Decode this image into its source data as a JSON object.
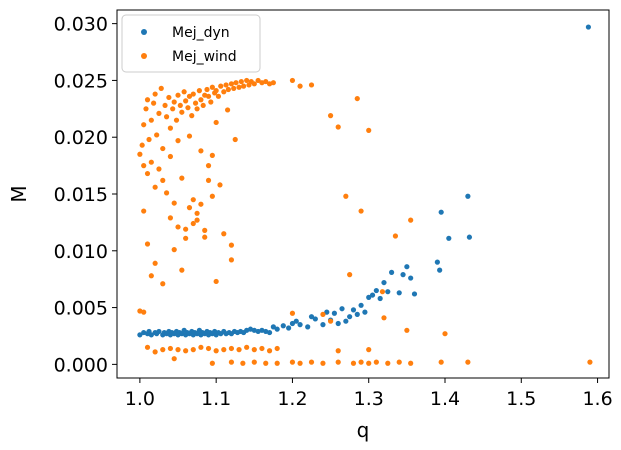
{
  "chart_data": {
    "type": "scatter",
    "xlabel": "q",
    "ylabel": "M",
    "xlim": [
      0.97,
      1.615
    ],
    "ylim": [
      -0.0012,
      0.0312
    ],
    "xticks": [
      "1.0",
      "1.1",
      "1.2",
      "1.3",
      "1.4",
      "1.5",
      "1.6"
    ],
    "xtick_values": [
      1.0,
      1.1,
      1.2,
      1.3,
      1.4,
      1.5,
      1.6
    ],
    "yticks": [
      "0.000",
      "0.005",
      "0.010",
      "0.015",
      "0.020",
      "0.025",
      "0.030"
    ],
    "ytick_values": [
      0.0,
      0.005,
      0.01,
      0.015,
      0.02,
      0.025,
      0.03
    ],
    "grid": false,
    "legend_position": "top-left",
    "series": [
      {
        "name": "Mej_dyn",
        "color": "#1f77b4",
        "points": [
          [
            1.0,
            0.0026
          ],
          [
            1.005,
            0.0028
          ],
          [
            1.01,
            0.0027
          ],
          [
            1.012,
            0.0029
          ],
          [
            1.015,
            0.0026
          ],
          [
            1.02,
            0.0028
          ],
          [
            1.022,
            0.0027
          ],
          [
            1.025,
            0.0029
          ],
          [
            1.03,
            0.0026
          ],
          [
            1.032,
            0.0028
          ],
          [
            1.035,
            0.0027
          ],
          [
            1.038,
            0.0029
          ],
          [
            1.04,
            0.0026
          ],
          [
            1.042,
            0.0028
          ],
          [
            1.045,
            0.0027
          ],
          [
            1.048,
            0.0029
          ],
          [
            1.05,
            0.0026
          ],
          [
            1.052,
            0.0028
          ],
          [
            1.055,
            0.0027
          ],
          [
            1.058,
            0.003
          ],
          [
            1.06,
            0.0026
          ],
          [
            1.062,
            0.0028
          ],
          [
            1.065,
            0.0027
          ],
          [
            1.068,
            0.0029
          ],
          [
            1.07,
            0.0026
          ],
          [
            1.072,
            0.0028
          ],
          [
            1.075,
            0.0027
          ],
          [
            1.078,
            0.003
          ],
          [
            1.08,
            0.0026
          ],
          [
            1.082,
            0.0028
          ],
          [
            1.085,
            0.0027
          ],
          [
            1.088,
            0.0029
          ],
          [
            1.09,
            0.0026
          ],
          [
            1.092,
            0.0028
          ],
          [
            1.095,
            0.0027
          ],
          [
            1.098,
            0.0029
          ],
          [
            1.1,
            0.0026
          ],
          [
            1.103,
            0.0028
          ],
          [
            1.106,
            0.0027
          ],
          [
            1.11,
            0.0029
          ],
          [
            1.113,
            0.0027
          ],
          [
            1.117,
            0.0028
          ],
          [
            1.12,
            0.0027
          ],
          [
            1.124,
            0.0029
          ],
          [
            1.128,
            0.0028
          ],
          [
            1.132,
            0.0029
          ],
          [
            1.136,
            0.0028
          ],
          [
            1.14,
            0.003
          ],
          [
            1.145,
            0.0031
          ],
          [
            1.15,
            0.003
          ],
          [
            1.155,
            0.0029
          ],
          [
            1.16,
            0.003
          ],
          [
            1.165,
            0.0029
          ],
          [
            1.17,
            0.0028
          ],
          [
            1.175,
            0.0033
          ],
          [
            1.18,
            0.0031
          ],
          [
            1.188,
            0.0034
          ],
          [
            1.195,
            0.0032
          ],
          [
            1.2,
            0.0036
          ],
          [
            1.205,
            0.0038
          ],
          [
            1.21,
            0.0035
          ],
          [
            1.22,
            0.0033
          ],
          [
            1.225,
            0.0042
          ],
          [
            1.23,
            0.004
          ],
          [
            1.24,
            0.0035
          ],
          [
            1.245,
            0.0046
          ],
          [
            1.25,
            0.0039
          ],
          [
            1.255,
            0.0045
          ],
          [
            1.26,
            0.0036
          ],
          [
            1.265,
            0.0049
          ],
          [
            1.27,
            0.0038
          ],
          [
            1.275,
            0.0042
          ],
          [
            1.28,
            0.0048
          ],
          [
            1.285,
            0.0044
          ],
          [
            1.29,
            0.0052
          ],
          [
            1.295,
            0.0046
          ],
          [
            1.3,
            0.0059
          ],
          [
            1.305,
            0.0061
          ],
          [
            1.31,
            0.0065
          ],
          [
            1.315,
            0.0058
          ],
          [
            1.32,
            0.0072
          ],
          [
            1.325,
            0.0064
          ],
          [
            1.33,
            0.0081
          ],
          [
            1.34,
            0.0063
          ],
          [
            1.345,
            0.0079
          ],
          [
            1.35,
            0.0086
          ],
          [
            1.355,
            0.0076
          ],
          [
            1.36,
            0.0062
          ],
          [
            1.39,
            0.009
          ],
          [
            1.393,
            0.0083
          ],
          [
            1.395,
            0.0134
          ],
          [
            1.405,
            0.0111
          ],
          [
            1.43,
            0.0148
          ],
          [
            1.432,
            0.0112
          ],
          [
            1.588,
            0.0297
          ]
        ]
      },
      {
        "name": "Mej_wind",
        "color": "#ff7f0e",
        "points": [
          [
            1.0,
            0.0185
          ],
          [
            1.003,
            0.0193
          ],
          [
            1.005,
            0.0211
          ],
          [
            1.008,
            0.0225
          ],
          [
            1.01,
            0.0233
          ],
          [
            1.012,
            0.0198
          ],
          [
            1.015,
            0.0215
          ],
          [
            1.018,
            0.023
          ],
          [
            1.02,
            0.0238
          ],
          [
            1.022,
            0.0202
          ],
          [
            1.025,
            0.0221
          ],
          [
            1.028,
            0.0243
          ],
          [
            1.03,
            0.019
          ],
          [
            1.033,
            0.0228
          ],
          [
            1.035,
            0.0218
          ],
          [
            1.038,
            0.0235
          ],
          [
            1.04,
            0.0208
          ],
          [
            1.043,
            0.0225
          ],
          [
            1.045,
            0.0231
          ],
          [
            1.048,
            0.0215
          ],
          [
            1.05,
            0.0237
          ],
          [
            1.053,
            0.0228
          ],
          [
            1.055,
            0.0222
          ],
          [
            1.058,
            0.024
          ],
          [
            1.06,
            0.0232
          ],
          [
            1.063,
            0.0226
          ],
          [
            1.065,
            0.0236
          ],
          [
            1.068,
            0.0219
          ],
          [
            1.07,
            0.0238
          ],
          [
            1.073,
            0.023
          ],
          [
            1.075,
            0.0225
          ],
          [
            1.078,
            0.0241
          ],
          [
            1.08,
            0.0233
          ],
          [
            1.083,
            0.0228
          ],
          [
            1.085,
            0.0237
          ],
          [
            1.088,
            0.0242
          ],
          [
            1.09,
            0.0236
          ],
          [
            1.093,
            0.0231
          ],
          [
            1.095,
            0.0244
          ],
          [
            1.098,
            0.0239
          ],
          [
            1.1,
            0.0241
          ],
          [
            1.103,
            0.0236
          ],
          [
            1.106,
            0.0245
          ],
          [
            1.11,
            0.024
          ],
          [
            1.113,
            0.0246
          ],
          [
            1.116,
            0.0242
          ],
          [
            1.12,
            0.0247
          ],
          [
            1.123,
            0.0243
          ],
          [
            1.126,
            0.0248
          ],
          [
            1.13,
            0.0244
          ],
          [
            1.133,
            0.0249
          ],
          [
            1.136,
            0.0245
          ],
          [
            1.14,
            0.025
          ],
          [
            1.143,
            0.0246
          ],
          [
            1.146,
            0.0249
          ],
          [
            1.15,
            0.0247
          ],
          [
            1.155,
            0.025
          ],
          [
            1.16,
            0.0248
          ],
          [
            1.165,
            0.0249
          ],
          [
            1.17,
            0.0247
          ],
          [
            1.175,
            0.0248
          ],
          [
            1.005,
            0.0175
          ],
          [
            1.01,
            0.0168
          ],
          [
            1.015,
            0.0178
          ],
          [
            1.02,
            0.0156
          ],
          [
            1.025,
            0.0172
          ],
          [
            1.03,
            0.0162
          ],
          [
            1.035,
            0.0151
          ],
          [
            1.04,
            0.0183
          ],
          [
            1.045,
            0.0142
          ],
          [
            1.05,
            0.0197
          ],
          [
            1.055,
            0.0164
          ],
          [
            1.06,
            0.0119
          ],
          [
            1.065,
            0.0201
          ],
          [
            1.07,
            0.0145
          ],
          [
            1.075,
            0.0133
          ],
          [
            1.08,
            0.0188
          ],
          [
            1.085,
            0.0112
          ],
          [
            1.09,
            0.0175
          ],
          [
            1.095,
            0.0148
          ],
          [
            1.1,
            0.0213
          ],
          [
            1.105,
            0.0158
          ],
          [
            1.11,
            0.0115
          ],
          [
            1.115,
            0.0224
          ],
          [
            1.12,
            0.0092
          ],
          [
            1.125,
            0.0198
          ],
          [
            1.005,
            0.0135
          ],
          [
            1.01,
            0.0106
          ],
          [
            1.015,
            0.0078
          ],
          [
            1.02,
            0.0089
          ],
          [
            1.03,
            0.0071
          ],
          [
            1.04,
            0.0129
          ],
          [
            1.045,
            0.0101
          ],
          [
            1.05,
            0.0121
          ],
          [
            1.055,
            0.0083
          ],
          [
            1.06,
            0.0111
          ],
          [
            1.065,
            0.0138
          ],
          [
            1.07,
            0.0124
          ],
          [
            1.075,
            0.0127
          ],
          [
            1.08,
            0.0141
          ],
          [
            1.085,
            0.0118
          ],
          [
            1.12,
            0.0105
          ],
          [
            1.1,
            0.0073
          ],
          [
            1.09,
            0.0162
          ],
          [
            1.095,
            0.0184
          ],
          [
            1.2,
            0.025
          ],
          [
            1.21,
            0.0245
          ],
          [
            1.225,
            0.0246
          ],
          [
            1.25,
            0.0219
          ],
          [
            1.26,
            0.0209
          ],
          [
            1.285,
            0.0234
          ],
          [
            1.3,
            0.0206
          ],
          [
            1.27,
            0.0148
          ],
          [
            1.29,
            0.0135
          ],
          [
            1.335,
            0.0113
          ],
          [
            1.355,
            0.0127
          ],
          [
            1.275,
            0.0079
          ],
          [
            1.318,
            0.0064
          ],
          [
            1.4,
            0.0027
          ],
          [
            1.0,
            0.0047
          ],
          [
            1.005,
            0.0046
          ],
          [
            1.01,
            0.0015
          ],
          [
            1.02,
            0.0011
          ],
          [
            1.03,
            0.0013
          ],
          [
            1.04,
            0.0014
          ],
          [
            1.05,
            0.0013
          ],
          [
            1.06,
            0.0012
          ],
          [
            1.07,
            0.0013
          ],
          [
            1.08,
            0.0015
          ],
          [
            1.09,
            0.0014
          ],
          [
            1.1,
            0.0012
          ],
          [
            1.11,
            0.0013
          ],
          [
            1.12,
            0.0014
          ],
          [
            1.13,
            0.0013
          ],
          [
            1.14,
            0.0015
          ],
          [
            1.15,
            0.0013
          ],
          [
            1.16,
            0.0014
          ],
          [
            1.17,
            0.0012
          ],
          [
            1.18,
            0.0014
          ],
          [
            1.2,
            0.0045
          ],
          [
            1.24,
            0.0044
          ],
          [
            1.25,
            0.0038
          ],
          [
            1.26,
            0.0012
          ],
          [
            1.3,
            0.0013
          ],
          [
            1.32,
            0.0041
          ],
          [
            1.35,
            0.003
          ],
          [
            1.045,
            0.0005
          ],
          [
            1.095,
            0.0001
          ],
          [
            1.12,
            0.0002
          ],
          [
            1.135,
            0.0001
          ],
          [
            1.15,
            0.0002
          ],
          [
            1.165,
            0.0001
          ],
          [
            1.18,
            0.0001
          ],
          [
            1.2,
            0.0002
          ],
          [
            1.21,
            0.0001
          ],
          [
            1.225,
            0.0002
          ],
          [
            1.24,
            0.0001
          ],
          [
            1.26,
            0.0002
          ],
          [
            1.28,
            0.0001
          ],
          [
            1.29,
            0.0002
          ],
          [
            1.3,
            0.0001
          ],
          [
            1.31,
            0.0002
          ],
          [
            1.325,
            0.0001
          ],
          [
            1.34,
            0.0002
          ],
          [
            1.355,
            0.0001
          ],
          [
            1.395,
            0.0002
          ],
          [
            1.43,
            0.0002
          ],
          [
            1.59,
            0.0002
          ]
        ]
      }
    ]
  }
}
